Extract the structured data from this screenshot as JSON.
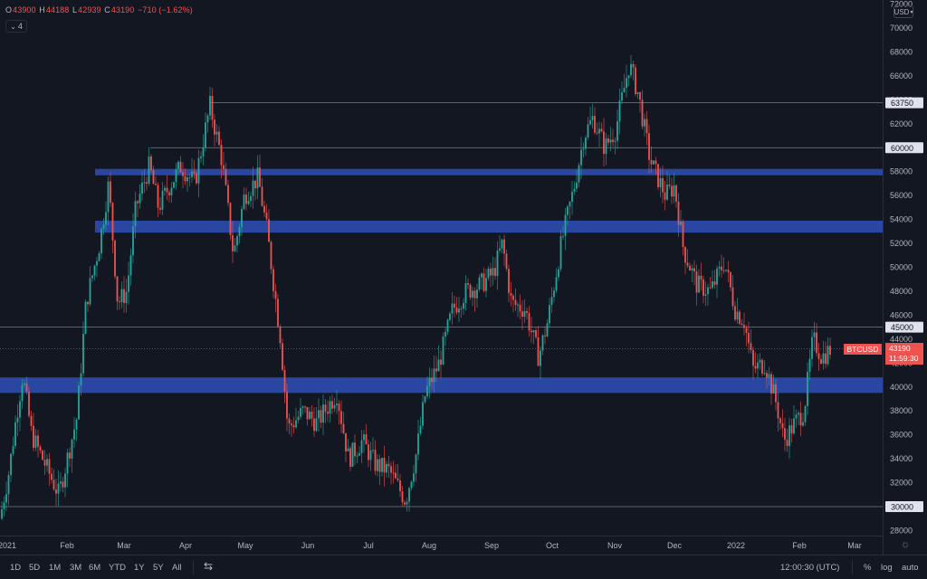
{
  "ohlc": {
    "o_label": "O",
    "o_value": "43900",
    "h_label": "H",
    "h_value": "44188",
    "l_label": "L",
    "l_value": "42939",
    "c_label": "C",
    "c_value": "43190",
    "change": "−710 (−1.62%)"
  },
  "indicators": {
    "icon": "chevron-down-icon",
    "count": "4"
  },
  "currency": "USD",
  "symbol": "BTCUSD",
  "last_price": {
    "price": "43190",
    "countdown": "11:59:30"
  },
  "price_axis": {
    "labels": [
      "72000",
      "70000",
      "68000",
      "66000",
      "64000",
      "62000",
      "60000",
      "58000",
      "56000",
      "54000",
      "52000",
      "50000",
      "48000",
      "46000",
      "44000",
      "42000",
      "40000",
      "38000",
      "36000",
      "34000",
      "32000",
      "30000",
      "28000"
    ],
    "highlighted": [
      "63750",
      "60000",
      "45000",
      "30000"
    ]
  },
  "time_axis": [
    "2021",
    "Feb",
    "Mar",
    "Apr",
    "May",
    "Jun",
    "Jul",
    "Aug",
    "Sep",
    "Oct",
    "Nov",
    "Dec",
    "2022",
    "Feb",
    "Mar"
  ],
  "bottom_bar": {
    "timeframes": [
      "1D",
      "5D",
      "1M",
      "3M",
      "6M",
      "YTD",
      "1Y",
      "5Y",
      "All"
    ],
    "time": "12:00:30 (UTC)",
    "percent": "%",
    "log": "log",
    "auto": "auto"
  },
  "colors": {
    "up": "#26a69a",
    "down": "#ef5350",
    "zone": "#2a4aa8",
    "background": "#131722"
  }
}
